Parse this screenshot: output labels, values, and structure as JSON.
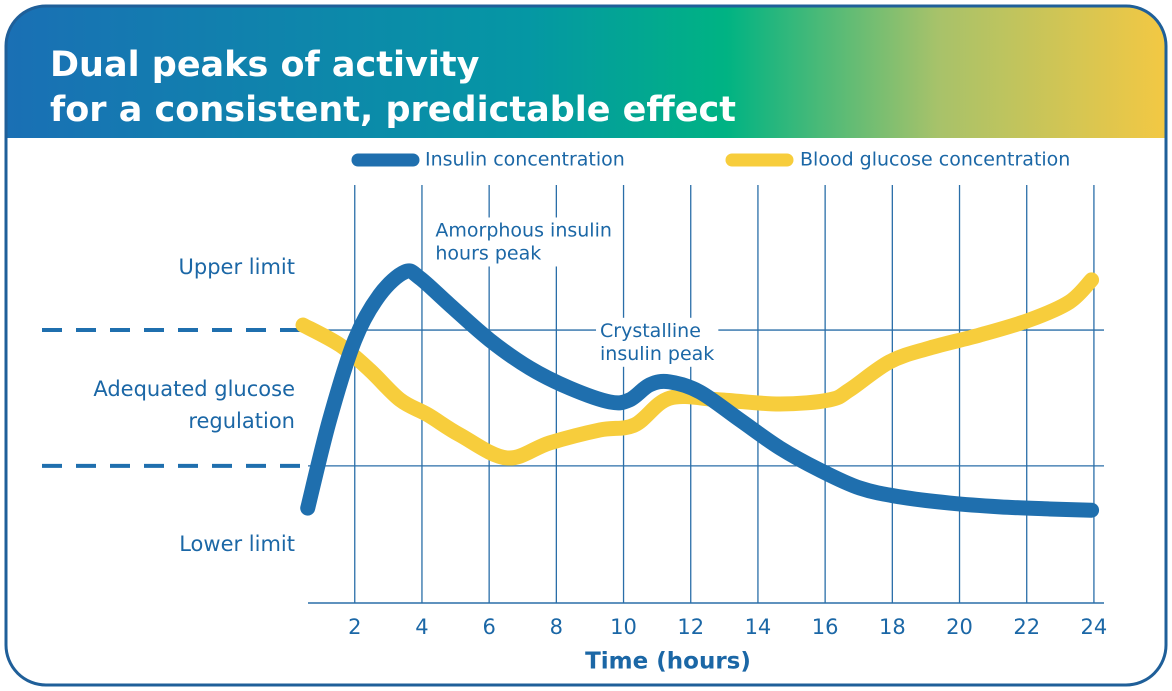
{
  "chart_data": {
    "type": "line",
    "title": [
      "Dual peaks of activity",
      "for a consistent, predictable effect"
    ],
    "xlabel": "Time (hours)",
    "xlim": [
      0.4,
      24.3
    ],
    "xticks": [
      2,
      4,
      6,
      8,
      10,
      12,
      14,
      16,
      18,
      20,
      22,
      24
    ],
    "ylim": [
      0,
      100
    ],
    "ref_lines": [
      65.3,
      32.8
    ],
    "y_labels": [
      "Upper limit",
      [
        "Adequated glucose",
        "regulation"
      ],
      "Lower limit"
    ],
    "grid": true,
    "legend": "top",
    "annotations": [
      {
        "lines": [
          "Amorphous insulin",
          "hours peak"
        ],
        "x": 4.4,
        "y": 89
      },
      {
        "lines": [
          "Crystalline",
          "insulin peak"
        ],
        "x": 9.3,
        "y": 65
      }
    ],
    "series": [
      {
        "name": "Insulin concentration",
        "color": "#1f6fae",
        "x": [
          0.6,
          1.25,
          2.0,
          2.74,
          3.49,
          3.93,
          4.83,
          6.02,
          7.21,
          8.4,
          9.59,
          10.18,
          10.78,
          11.37,
          12.27,
          13.46,
          14.65,
          15.84,
          17.03,
          18.22,
          19.71,
          21.2,
          22.68,
          23.93
        ],
        "values": [
          22.7,
          43.8,
          62.9,
          73.7,
          79.2,
          77.8,
          71.3,
          62.9,
          56.2,
          51.4,
          48.1,
          48.6,
          52.2,
          52.9,
          50.5,
          43.8,
          37.1,
          31.8,
          27.5,
          25.4,
          23.9,
          23.0,
          22.5,
          22.2
        ]
      },
      {
        "name": "Blood glucose concentration",
        "color": "#f7cd3c",
        "x": [
          0.46,
          1.56,
          2.45,
          3.35,
          4.18,
          5.13,
          6.53,
          7.8,
          9.3,
          10.33,
          11.37,
          12.86,
          14.65,
          16.13,
          16.73,
          17.92,
          19.11,
          20.6,
          22.08,
          23.27,
          23.93
        ],
        "values": [
          66.5,
          61.7,
          55.7,
          48.6,
          45.0,
          40.2,
          34.7,
          38.3,
          41.4,
          42.6,
          49.0,
          48.6,
          47.6,
          48.6,
          51.0,
          57.7,
          61.0,
          64.1,
          67.7,
          72.0,
          77.3
        ]
      }
    ]
  }
}
